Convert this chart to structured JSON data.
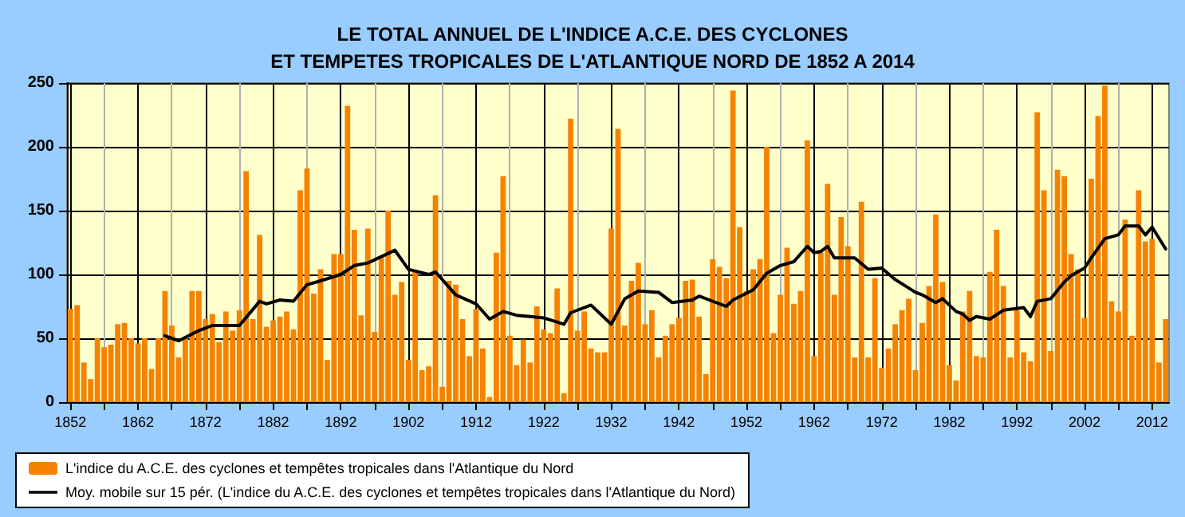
{
  "chart_data": {
    "type": "bar",
    "title": "LE TOTAL ANNUEL DE L'INDICE A.C.E. DES CYCLONES\nET TEMPETES TROPICALES DE L'ATLANTIQUE NORD DE 1852 A 2014",
    "x": [
      1852,
      1853,
      1854,
      1855,
      1856,
      1857,
      1858,
      1859,
      1860,
      1861,
      1862,
      1863,
      1864,
      1865,
      1866,
      1867,
      1868,
      1869,
      1870,
      1871,
      1872,
      1873,
      1874,
      1875,
      1876,
      1877,
      1878,
      1879,
      1880,
      1881,
      1882,
      1883,
      1884,
      1885,
      1886,
      1887,
      1888,
      1889,
      1890,
      1891,
      1892,
      1893,
      1894,
      1895,
      1896,
      1897,
      1898,
      1899,
      1900,
      1901,
      1902,
      1903,
      1904,
      1905,
      1906,
      1907,
      1908,
      1909,
      1910,
      1911,
      1912,
      1913,
      1914,
      1915,
      1916,
      1917,
      1918,
      1919,
      1920,
      1921,
      1922,
      1923,
      1924,
      1925,
      1926,
      1927,
      1928,
      1929,
      1930,
      1931,
      1932,
      1933,
      1934,
      1935,
      1936,
      1937,
      1938,
      1939,
      1940,
      1941,
      1942,
      1943,
      1944,
      1945,
      1946,
      1947,
      1948,
      1949,
      1950,
      1951,
      1952,
      1953,
      1954,
      1955,
      1956,
      1957,
      1958,
      1959,
      1960,
      1961,
      1962,
      1963,
      1964,
      1965,
      1966,
      1967,
      1968,
      1969,
      1970,
      1971,
      1972,
      1973,
      1974,
      1975,
      1976,
      1977,
      1978,
      1979,
      1980,
      1981,
      1982,
      1983,
      1984,
      1985,
      1986,
      1987,
      1988,
      1989,
      1990,
      1991,
      1992,
      1993,
      1994,
      1995,
      1996,
      1997,
      1998,
      1999,
      2000,
      2001,
      2002,
      2003,
      2004,
      2005,
      2006,
      2007,
      2008,
      2009,
      2010,
      2011,
      2012,
      2013,
      2014
    ],
    "series": [
      {
        "name": "L'indice du A.C.E. des cyclones et tempêtes tropicales dans l'Atlantique du Nord",
        "color": "#f58200",
        "values": [
          73,
          76,
          31,
          18,
          50,
          43,
          45,
          61,
          62,
          50,
          46,
          50,
          26,
          50,
          87,
          60,
          35,
          51,
          87,
          87,
          65,
          69,
          47,
          71,
          56,
          72,
          181,
          65,
          131,
          59,
          64,
          67,
          71,
          57,
          166,
          183,
          85,
          104,
          33,
          116,
          116,
          232,
          135,
          68,
          136,
          55,
          113,
          150,
          84,
          94,
          33,
          102,
          25,
          28,
          162,
          12,
          95,
          92,
          65,
          36,
          73,
          42,
          4,
          117,
          177,
          52,
          29,
          49,
          31,
          75,
          57,
          54,
          89,
          7,
          222,
          56,
          71,
          42,
          39,
          39,
          136,
          214,
          60,
          95,
          109,
          61,
          72,
          35,
          52,
          61,
          66,
          95,
          96,
          67,
          22,
          112,
          106,
          97,
          244,
          137,
          87,
          104,
          112,
          200,
          54,
          84,
          121,
          77,
          87,
          205,
          36,
          117,
          171,
          84,
          145,
          122,
          35,
          157,
          35,
          97,
          27,
          42,
          61,
          72,
          81,
          25,
          62,
          91,
          147,
          94,
          29,
          17,
          71,
          87,
          36,
          35,
          102,
          135,
          91,
          35,
          72,
          39,
          32,
          227,
          166,
          40,
          182,
          177,
          116,
          104,
          66,
          175,
          224,
          248,
          79,
          71,
          143,
          52,
          166,
          126,
          128,
          31,
          65
        ]
      },
      {
        "name": "Moy. mobile sur 15 pér. (L'indice du A.C.E. des cyclones et tempêtes tropicales dans l'Atlantique du Nord)",
        "type": "line",
        "color": "#000000",
        "x": [
          1866,
          1868,
          1871,
          1873,
          1877,
          1880,
          1881,
          1883,
          1885,
          1887,
          1889,
          1892,
          1894,
          1896,
          1900,
          1902,
          1905,
          1906,
          1909,
          1912,
          1914,
          1916,
          1918,
          1920,
          1922,
          1925,
          1926,
          1929,
          1932,
          1934,
          1936,
          1939,
          1941,
          1944,
          1945,
          1949,
          1950,
          1953,
          1955,
          1957,
          1959,
          1961,
          1962,
          1963,
          1964,
          1965,
          1968,
          1970,
          1972,
          1974,
          1977,
          1978,
          1980,
          1981,
          1983,
          1984,
          1985,
          1986,
          1988,
          1990,
          1993,
          1994,
          1995,
          1997,
          1999,
          2000,
          2002,
          2003,
          2005,
          2007,
          2008,
          2010,
          2011,
          2012,
          2014
        ],
        "values": [
          52,
          48,
          56,
          60,
          60,
          79,
          77,
          80,
          79,
          92,
          95,
          100,
          107,
          109,
          119,
          104,
          100,
          102,
          84,
          77,
          65,
          71,
          68,
          67,
          66,
          61,
          70,
          76,
          61,
          81,
          87,
          86,
          78,
          80,
          83,
          75,
          80,
          88,
          101,
          107,
          110,
          122,
          117,
          118,
          122,
          113,
          113,
          104,
          105,
          96,
          86,
          84,
          78,
          81,
          71,
          69,
          64,
          67,
          65,
          72,
          74,
          67,
          79,
          81,
          94,
          99,
          105,
          113,
          128,
          131,
          138,
          138,
          131,
          137,
          120
        ]
      }
    ],
    "xlim": [
      1851.5,
      2014.5
    ],
    "xticks": [
      1852,
      {
        "value": 1857,
        "label": null
      },
      1862,
      {
        "value": 1867,
        "label": null
      },
      1872,
      {
        "value": 1877,
        "label": null
      },
      1882,
      {
        "value": 1887,
        "label": null
      },
      1892,
      {
        "value": 1897,
        "label": null
      },
      1902,
      {
        "value": 1907,
        "label": null
      },
      1912,
      {
        "value": 1917,
        "label": null
      },
      1922,
      {
        "value": 1927,
        "label": null
      },
      1932,
      {
        "value": 1937,
        "label": null
      },
      1942,
      {
        "value": 1947,
        "label": null
      },
      1952,
      {
        "value": 1957,
        "label": null
      },
      1962,
      {
        "value": 1967,
        "label": null
      },
      1972,
      {
        "value": 1977,
        "label": null
      },
      1982,
      {
        "value": 1987,
        "label": null
      },
      1992,
      {
        "value": 1997,
        "label": null
      },
      2002,
      {
        "value": 2007,
        "label": null
      },
      2012
    ],
    "ylim": [
      0,
      250
    ],
    "yticks": [
      0,
      50,
      100,
      150,
      200,
      250
    ],
    "grid": true,
    "legend": "bottom left",
    "marker": "none"
  }
}
